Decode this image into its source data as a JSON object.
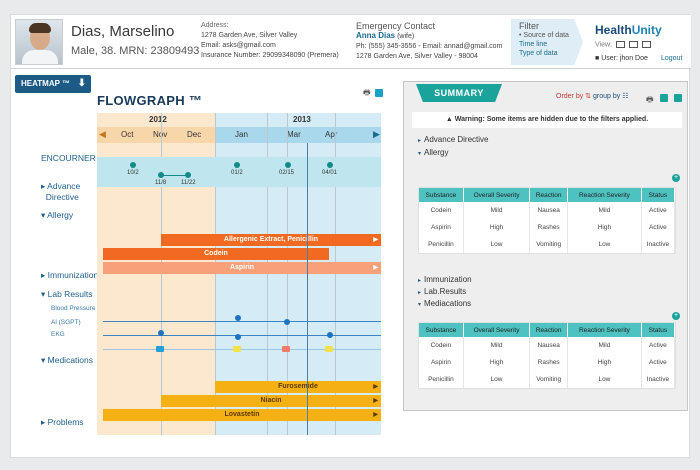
{
  "patient": {
    "name": "Dias, Marselino",
    "details": "Male, 38. MRN: 23809493",
    "address_label": "Address:",
    "address": "1278 Garden Ave, Silver Valley",
    "email": "Email: asks@gmail.com",
    "insurance": "Insurance Number: 29099348090 (Premera)"
  },
  "emergency": {
    "title": "Emergency Contact",
    "name": "Anna Dias",
    "relation": " (wife)",
    "contact": "Ph: (555) 345-3556 - Email: annad@gmail.com",
    "address": "1278 Garden Ave, Silver Valley - 98004"
  },
  "filter": {
    "title": "Filter",
    "items": [
      "• Source of data",
      "Time line",
      "Type of data"
    ]
  },
  "brand": {
    "logo_a": "Health",
    "logo_b": "Unity"
  },
  "view_label": "View:",
  "user": {
    "label": "User: jhon Doe",
    "logout": "Logout"
  },
  "heatmap_label": "HEATMAP ™",
  "flowgraph": {
    "title": "FLOWGRAPH ™",
    "years": [
      "2012",
      "2013"
    ],
    "months": [
      "Oct",
      "Nov",
      "Dec",
      "Jan",
      "Mar",
      "Apr"
    ],
    "encounter_dates": [
      "10/2",
      "11/8",
      "11/22",
      "01/2",
      "02/15",
      "04/01"
    ],
    "allergy_bars": [
      "Allergenic Extract, Penicillin",
      "Codein",
      "Aspirin"
    ],
    "medication_bars": [
      "Furosemide",
      "Niacin",
      "Lovastetin"
    ]
  },
  "left_labels": {
    "encounter": "ENCOURNER",
    "advance": "Advance",
    "directive": "Directive",
    "allergy": "Allergy",
    "immunization": "Immunization",
    "lab_results": "Lab Results",
    "blood_pressure": "Blood Pressure",
    "alt": "Al (SGPT)",
    "ekg": "EKG",
    "medications": "Medications",
    "problems": "Problems"
  },
  "summary": {
    "tab": "SUMMARY",
    "order_by": "Order by",
    "group_by": "group by",
    "warning": "Warning: Some items are hidden due to the filters applied.",
    "sections": [
      "Advance Directive",
      "Allergy",
      "Immunization",
      "Lab.Results",
      "Mediacations"
    ],
    "columns": [
      "Substance",
      "Overall Severity",
      "Reaction",
      "Reaction Severity",
      "Status"
    ],
    "allergy_rows": [
      [
        "Codein",
        "Mild",
        "Nausea",
        "Mild",
        "Active"
      ],
      [
        "Aspirin",
        "High",
        "Rashes",
        "High",
        "Active"
      ],
      [
        "Penicillin",
        "Low",
        "Vomiting",
        "Low",
        "Inactive"
      ]
    ],
    "medication_rows": [
      [
        "Codein",
        "Mild",
        "Nausea",
        "Mild",
        "Active"
      ],
      [
        "Aspirin",
        "High",
        "Rashes",
        "High",
        "Active"
      ],
      [
        "Penicillin",
        "Low",
        "Vomiting",
        "Low",
        "Inactive"
      ]
    ]
  },
  "colors": {
    "accent": "#1aa39b",
    "orange": "#f26a21",
    "amber": "#f5b014",
    "navy": "#1d5b86"
  }
}
